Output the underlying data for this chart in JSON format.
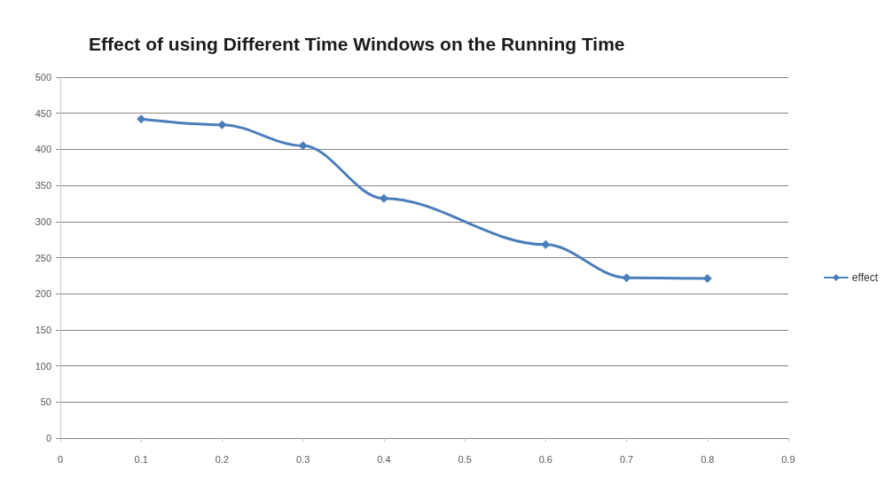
{
  "chart_data": {
    "type": "line",
    "title": "Effect of using Different Time Windows on the Running Time",
    "x": [
      0.1,
      0.2,
      0.3,
      0.4,
      0.6,
      0.7,
      0.8
    ],
    "series": [
      {
        "name": "effect",
        "color": "#4a7ebb",
        "values": [
          442,
          434,
          405,
          332,
          268,
          222,
          221
        ]
      }
    ],
    "xlim": [
      0,
      0.9
    ],
    "xticks": [
      0,
      0.1,
      0.2,
      0.3,
      0.4,
      0.5,
      0.6,
      0.7,
      0.8,
      0.9
    ],
    "ylim": [
      0,
      500
    ],
    "yticks": [
      0,
      50,
      100,
      150,
      200,
      250,
      300,
      350,
      400,
      450,
      500
    ],
    "grid": "y",
    "legend": "right",
    "marker": "diamond",
    "line_style": "solid"
  }
}
